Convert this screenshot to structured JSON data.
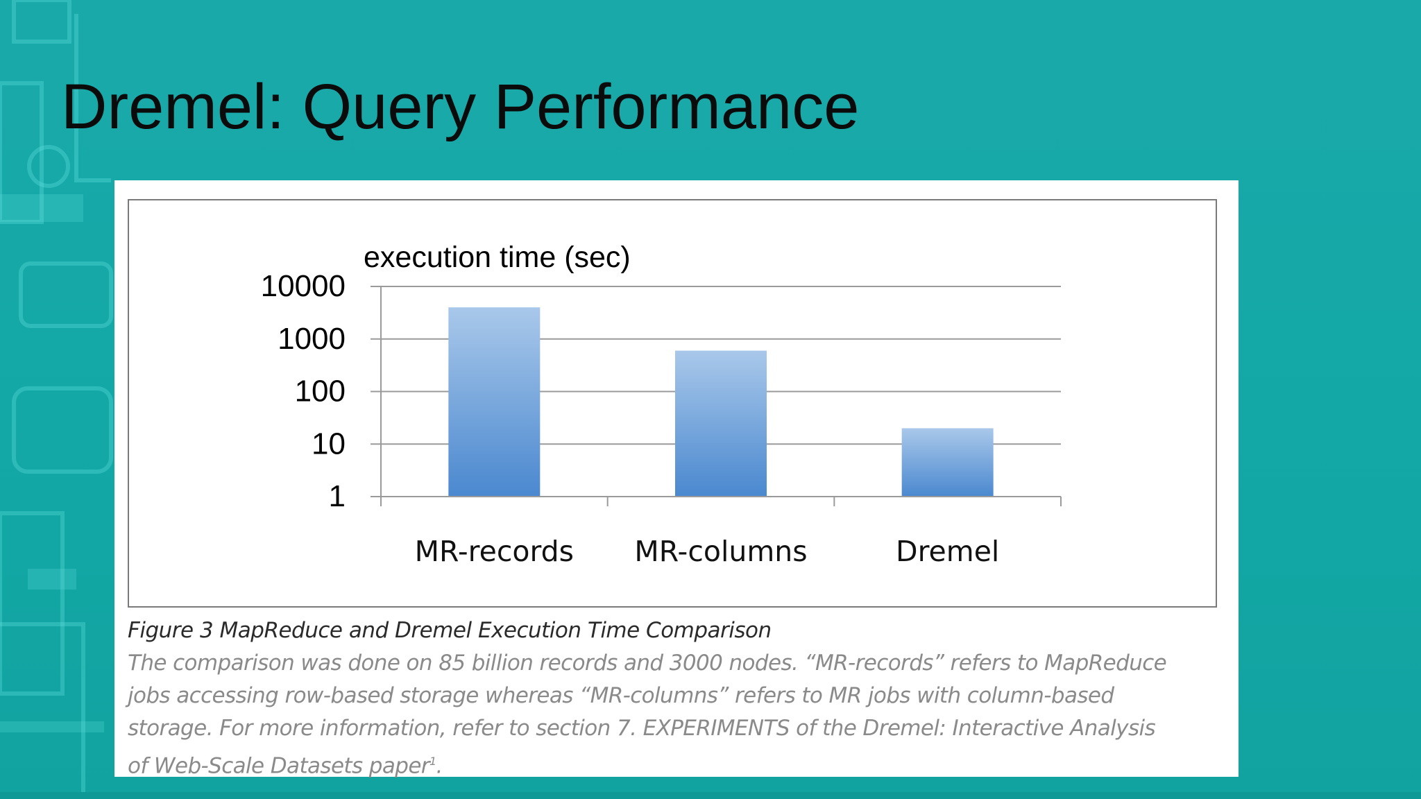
{
  "slide": {
    "title": "Dremel: Query Performance"
  },
  "colors": {
    "background": "#13a8a6",
    "bar_top": "#a9c8ea",
    "bar_bottom": "#4a88cf",
    "gridline": "#9a9a9a"
  },
  "chart_data": {
    "type": "bar",
    "ylabel": "execution time (sec)",
    "yscale": "log",
    "ylim": [
      1,
      10000
    ],
    "yticks": [
      {
        "value": 10000,
        "label": "10000"
      },
      {
        "value": 1000,
        "label": "1000"
      },
      {
        "value": 100,
        "label": "100"
      },
      {
        "value": 10,
        "label": "10"
      },
      {
        "value": 1,
        "label": "1"
      }
    ],
    "categories": [
      "MR-records",
      "MR-columns",
      "Dremel"
    ],
    "values": [
      4000,
      600,
      20
    ],
    "grid": true,
    "legend": false
  },
  "caption": {
    "title": "Figure 3 MapReduce and Dremel Execution Time Comparison",
    "lines": [
      "The comparison was done on 85 billion records and 3000 nodes. “MR-records” refers to MapReduce",
      "jobs accessing row-based storage whereas “MR-columns” refers to MR jobs with column-based",
      "storage. For more information, refer to section 7. EXPERIMENTS of the Dremel: Interactive Analysis",
      "of Web-Scale Datasets paper"
    ],
    "footnote_mark": "1",
    "final_period": "."
  }
}
